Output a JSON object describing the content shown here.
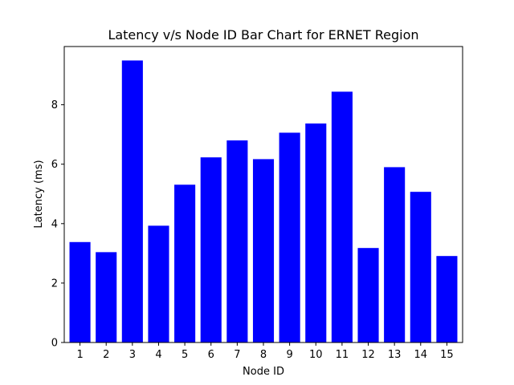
{
  "chart_data": {
    "type": "bar",
    "title": "Latency v/s Node ID Bar Chart for ERNET Region",
    "xlabel": "Node ID",
    "ylabel": "Latency (ms)",
    "categories": [
      "1",
      "2",
      "3",
      "4",
      "5",
      "6",
      "7",
      "8",
      "9",
      "10",
      "11",
      "12",
      "13",
      "14",
      "15"
    ],
    "values": [
      3.38,
      3.04,
      9.49,
      3.93,
      5.31,
      6.23,
      6.8,
      6.17,
      7.06,
      7.37,
      8.44,
      3.18,
      5.9,
      5.07,
      2.91
    ],
    "ylim": [
      0,
      9.96
    ],
    "yticks": [
      0,
      2,
      4,
      6,
      8
    ],
    "bar_color": "#0000ff",
    "grid": false,
    "legend": "none"
  }
}
